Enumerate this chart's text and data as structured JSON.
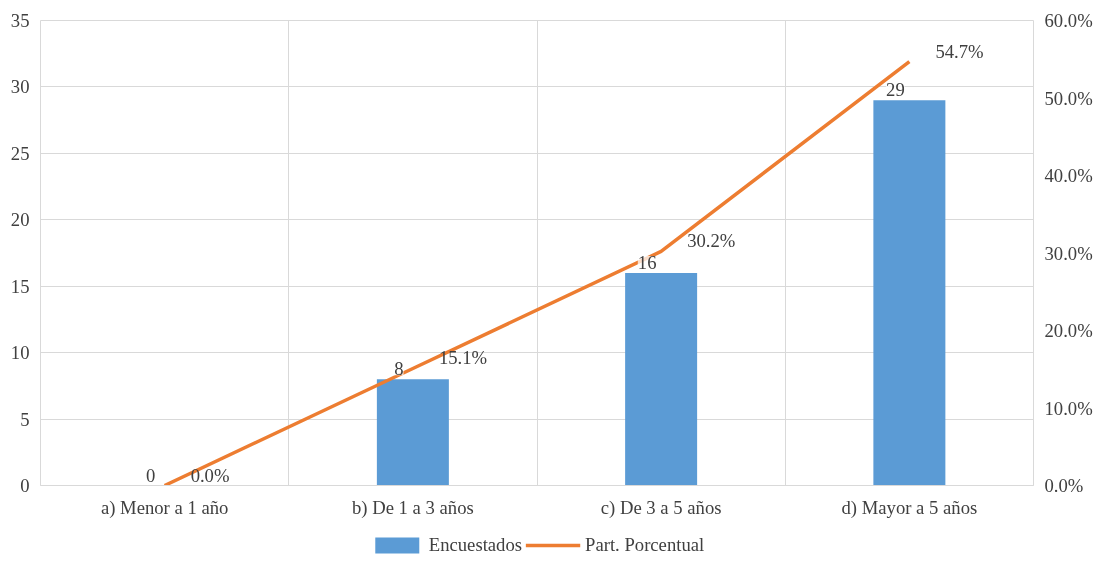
{
  "chart_data": {
    "type": "bar",
    "categories": [
      "a) Menor a 1 año",
      "b) De 1 a 3 años",
      "c) De 3 a 5 años",
      "d) Mayor a 5 años"
    ],
    "series": [
      {
        "name": "Encuestados",
        "color": "#5b9bd5",
        "values": [
          0,
          8,
          16,
          29
        ],
        "value_labels": [
          "0",
          "8",
          "16",
          "29"
        ]
      },
      {
        "name": "Part. Porcentual",
        "type": "line",
        "axis": "y2",
        "color": "#ed7d31",
        "values": [
          0.0,
          15.1,
          30.2,
          54.7
        ],
        "value_labels": [
          "0.0%",
          "15.1%",
          "30.2%",
          "54.7%"
        ]
      }
    ],
    "ylim": [
      0,
      35
    ],
    "yticks": [
      0,
      5,
      10,
      15,
      20,
      25,
      30,
      35
    ],
    "y2lim": [
      0,
      60
    ],
    "y2ticks": [
      {
        "value": 0,
        "label": "0.0%"
      },
      {
        "value": 10,
        "label": "10.0%"
      },
      {
        "value": 20,
        "label": "20.0%"
      },
      {
        "value": 30,
        "label": "30.0%"
      },
      {
        "value": 40,
        "label": "40.0%"
      },
      {
        "value": 50,
        "label": "50.0%"
      },
      {
        "value": 60,
        "label": "60.0%"
      }
    ],
    "grid": true,
    "legend": "bottom",
    "line_style": "solid",
    "marker": "none"
  }
}
